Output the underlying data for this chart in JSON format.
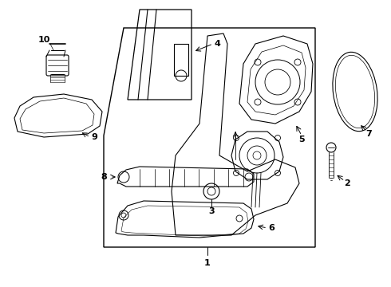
{
  "background_color": "#ffffff",
  "line_color": "#000000",
  "figsize": [
    4.9,
    3.6
  ],
  "dpi": 100
}
